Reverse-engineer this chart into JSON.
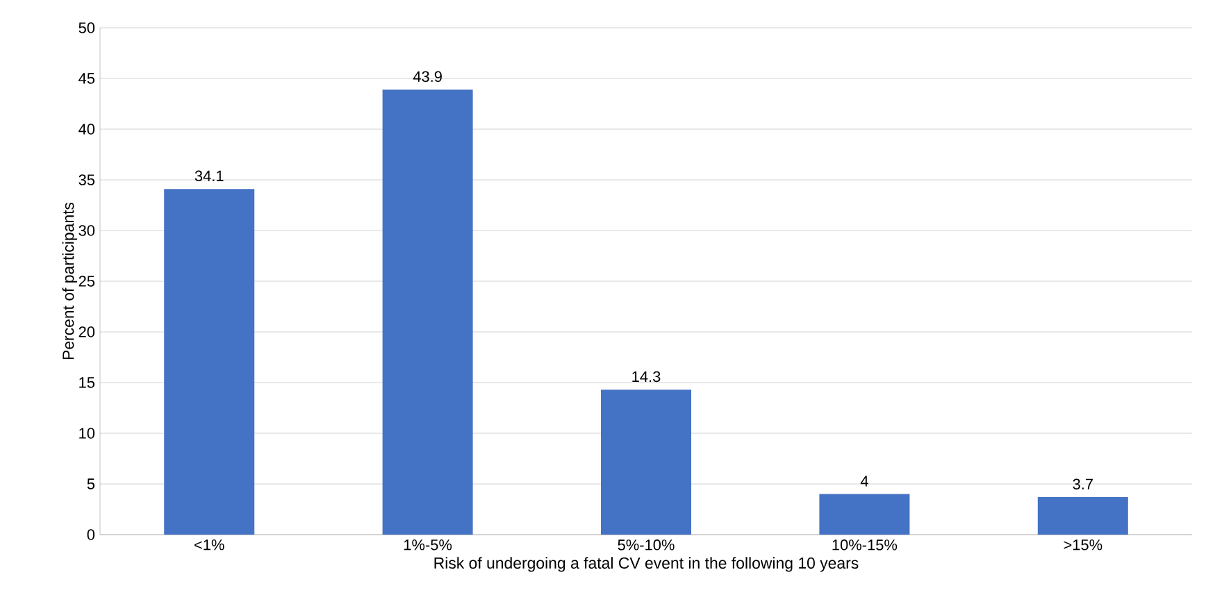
{
  "chart_data": {
    "type": "bar",
    "xlabel": "Risk of undergoing a fatal CV event in the following 10 years",
    "ylabel": "Percent of participants",
    "categories": [
      "<1%",
      "1%-5%",
      "5%-10%",
      "10%-15%",
      ">15%"
    ],
    "values": [
      34.1,
      43.9,
      14.3,
      4,
      3.7
    ],
    "color": "#4472c4",
    "ylim": [
      0,
      50
    ],
    "yticks": [
      0,
      5,
      10,
      15,
      20,
      25,
      30,
      35,
      40,
      45,
      50
    ],
    "grid": "y",
    "data_labels": true
  }
}
